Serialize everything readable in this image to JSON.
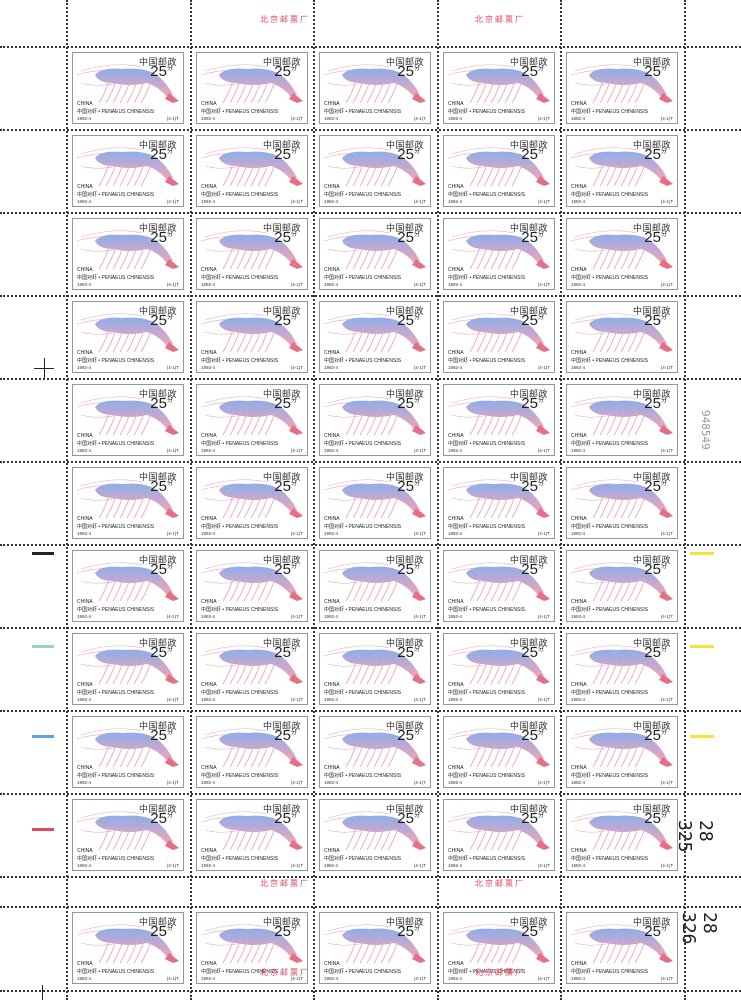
{
  "sheet": {
    "imprint_top": "北京邮票厂",
    "imprint_mid": "北京邮票厂",
    "imprint_bottom": "北京邮票厂",
    "sheet_number": "948549",
    "control_number_1": "28 325",
    "control_number_2": "28 326",
    "color_bars_left": [
      "#222222",
      "#9bd0c6",
      "#5fa3d9",
      "#e14a62"
    ],
    "color_bars_right": [
      "#f5e23a",
      "#f5e23a",
      "#f5e23a"
    ]
  },
  "stamp": {
    "postal_name": "中国邮政",
    "value": "25",
    "value_unit": "分",
    "country": "CHINA",
    "species": "中国对虾 • PENAEUS CHINENSIS",
    "issue": "1992-4",
    "serial": "(4-1)T"
  },
  "colors": {
    "shrimp_body": "#8faeea",
    "shrimp_pink": "#f0a4b8",
    "shrimp_tail": "#e66f85"
  }
}
